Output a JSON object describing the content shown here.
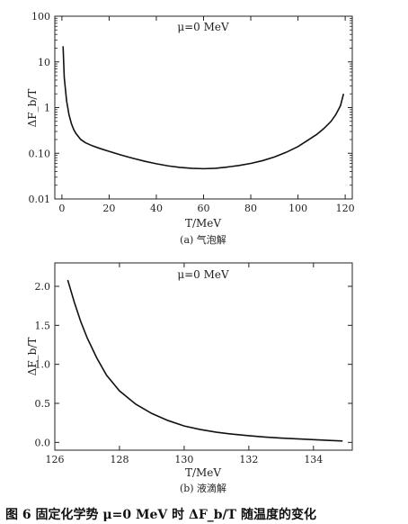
{
  "figure_caption": "图 6 固定化学势 μ=0 MeV 时 ΔF_b/T 随温度的变化",
  "chart_data": [
    {
      "type": "line",
      "subcaption": "(a) 气泡解",
      "annotation": "μ=0 MeV",
      "xlabel": "T/MeV",
      "ylabel": "ΔF_b/T",
      "yscale": "log",
      "xlim": [
        -3,
        123
      ],
      "ylim": [
        0.01,
        100
      ],
      "xticks": [
        0,
        20,
        40,
        60,
        80,
        100,
        120
      ],
      "xtick_labels": [
        "0",
        "20",
        "40",
        "60",
        "80",
        "100",
        "120"
      ],
      "yticks": [
        0.01,
        0.1,
        1,
        10,
        100
      ],
      "ytick_labels": [
        "0.01",
        "0.10",
        "1",
        "10",
        "100"
      ],
      "grid": false,
      "series": [
        {
          "x": [
            0.5,
            1,
            2,
            3,
            4,
            5,
            6,
            8,
            10,
            13,
            16,
            20,
            25,
            30,
            35,
            40,
            45,
            50,
            55,
            60,
            65,
            70,
            75,
            80,
            85,
            90,
            95,
            100,
            104,
            108,
            111,
            114,
            116,
            118,
            119.3
          ],
          "y": [
            22,
            4.5,
            1.4,
            0.7,
            0.45,
            0.33,
            0.27,
            0.2,
            0.17,
            0.145,
            0.128,
            0.11,
            0.092,
            0.078,
            0.067,
            0.059,
            0.053,
            0.049,
            0.047,
            0.046,
            0.047,
            0.05,
            0.054,
            0.06,
            0.069,
            0.083,
            0.105,
            0.14,
            0.19,
            0.26,
            0.35,
            0.5,
            0.7,
            1.1,
            2.0
          ]
        }
      ]
    },
    {
      "type": "line",
      "subcaption": "(b) 液滴解",
      "annotation": "μ=0 MeV",
      "xlabel": "T/MeV",
      "ylabel": "ΔF_b/T",
      "xlim": [
        126,
        135.2
      ],
      "ylim": [
        -0.1,
        2.3
      ],
      "xticks": [
        126,
        128,
        130,
        132,
        134
      ],
      "xtick_labels": [
        "126",
        "128",
        "130",
        "132",
        "134"
      ],
      "yticks": [
        0,
        0.5,
        1.0,
        1.5,
        2.0
      ],
      "ytick_labels": [
        "0.0",
        "0.5",
        "1.0",
        "1.5",
        "2.0"
      ],
      "grid": false,
      "series": [
        {
          "x": [
            126.4,
            126.6,
            126.8,
            127.0,
            127.3,
            127.6,
            128.0,
            128.5,
            129.0,
            129.5,
            130.0,
            130.5,
            131.0,
            131.5,
            132.0,
            132.5,
            133.0,
            133.5,
            134.0,
            134.5,
            134.9
          ],
          "y": [
            2.08,
            1.8,
            1.55,
            1.34,
            1.08,
            0.86,
            0.66,
            0.49,
            0.37,
            0.28,
            0.21,
            0.165,
            0.13,
            0.105,
            0.085,
            0.068,
            0.055,
            0.045,
            0.035,
            0.025,
            0.018
          ]
        }
      ]
    }
  ]
}
